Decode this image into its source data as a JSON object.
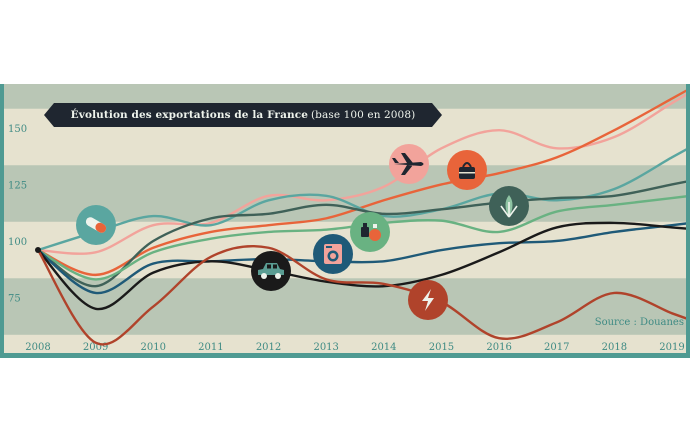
{
  "colors": {
    "frame": "#4f9a92",
    "background": "#e6e2cf",
    "band": "#b9c6b5",
    "title_bg": "#1f2630",
    "title_text": "#eef3ec",
    "axis_text": "#3f8b84"
  },
  "chart_data": {
    "type": "line",
    "title_bold": "Évolution des exportations de la France",
    "title_light": "(base 100 en 2008)",
    "source": "Source : Douanes",
    "xlabel": "",
    "ylabel": "",
    "x": [
      "2008",
      "2009",
      "2010",
      "2011",
      "2012",
      "2013",
      "2014",
      "2015",
      "2016",
      "2017",
      "2018",
      "2019"
    ],
    "y_ticks": [
      75,
      100,
      125,
      150
    ],
    "ylim": [
      54,
      173
    ],
    "grid": "horizontal bands",
    "legend": "none (icons on lines)",
    "series": [
      {
        "icon": "airplane-icon",
        "color": "#f2a39b",
        "values": [
          100,
          99,
          111,
          112,
          124,
          122,
          128,
          145,
          153,
          145,
          150,
          165
        ]
      },
      {
        "icon": "handbag-icon",
        "color": "#e8643a",
        "values": [
          100,
          89,
          101,
          108,
          111,
          114,
          122,
          129,
          134,
          141,
          153,
          167
        ]
      },
      {
        "icon": "pill-icon",
        "color": "#5aa6a0",
        "values": [
          100,
          108,
          115,
          111,
          122,
          124,
          115,
          118,
          125,
          122,
          127,
          141
        ]
      },
      {
        "icon": "grain-icon",
        "color": "#3f6158",
        "values": [
          100,
          84,
          104,
          114,
          116,
          120,
          116,
          118,
          121,
          123,
          124,
          129
        ]
      },
      {
        "icon": "perfume-icon",
        "color": "#69b282",
        "values": [
          100,
          87,
          99,
          105,
          108,
          109,
          112,
          113,
          108,
          117,
          120,
          123
        ]
      },
      {
        "icon": "washing-machine-icon",
        "color": "#1f5a78",
        "values": [
          100,
          81,
          94,
          95,
          96,
          95,
          95,
          100,
          103,
          104,
          108,
          111
        ]
      },
      {
        "icon": "car-icon",
        "color": "#1a1a1a",
        "values": [
          100,
          74,
          90,
          95,
          91,
          86,
          84,
          89,
          99,
          110,
          112,
          110
        ]
      },
      {
        "icon": "lightning-icon",
        "color": "#b0432b",
        "values": [
          100,
          59,
          75,
          97,
          101,
          87,
          85,
          77,
          61,
          68,
          81,
          72
        ]
      }
    ]
  }
}
